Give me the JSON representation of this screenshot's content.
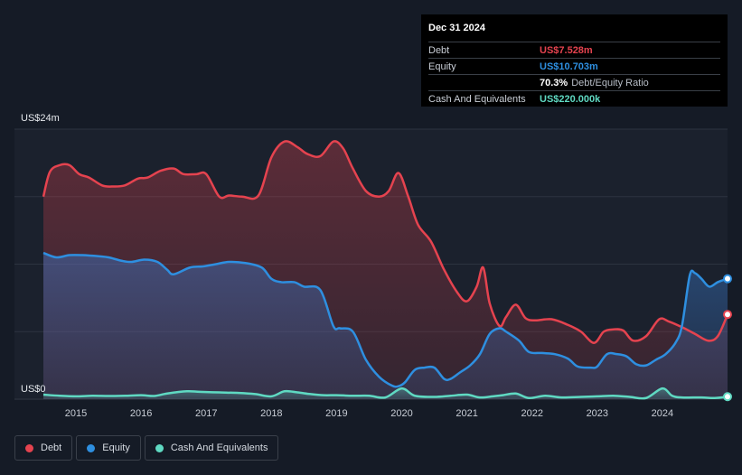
{
  "chart_data": {
    "type": "area",
    "y_top_label": "US$24m",
    "y_bottom_label": "US$0",
    "ylim": [
      0,
      24
    ],
    "xlim": [
      2014.5,
      2025.0
    ],
    "x_ticks": [
      2015,
      2016,
      2017,
      2018,
      2019,
      2020,
      2021,
      2022,
      2023,
      2024
    ],
    "series": [
      {
        "name": "Debt",
        "color": "#e5434f",
        "fill": "#e5434f",
        "points": [
          [
            2014.5,
            18.0
          ],
          [
            2014.6,
            20.2
          ],
          [
            2014.75,
            20.8
          ],
          [
            2014.9,
            20.8
          ],
          [
            2015.05,
            20.0
          ],
          [
            2015.2,
            19.7
          ],
          [
            2015.4,
            19.0
          ],
          [
            2015.55,
            18.9
          ],
          [
            2015.75,
            19.0
          ],
          [
            2015.95,
            19.6
          ],
          [
            2016.1,
            19.7
          ],
          [
            2016.3,
            20.3
          ],
          [
            2016.5,
            20.5
          ],
          [
            2016.65,
            20.0
          ],
          [
            2016.85,
            20.0
          ],
          [
            2017.0,
            20.0
          ],
          [
            2017.2,
            18.0
          ],
          [
            2017.35,
            18.1
          ],
          [
            2017.55,
            18.0
          ],
          [
            2017.8,
            18.1
          ],
          [
            2018.0,
            21.5
          ],
          [
            2018.2,
            22.9
          ],
          [
            2018.4,
            22.4
          ],
          [
            2018.55,
            21.8
          ],
          [
            2018.75,
            21.6
          ],
          [
            2018.95,
            22.9
          ],
          [
            2019.1,
            22.3
          ],
          [
            2019.25,
            20.5
          ],
          [
            2019.45,
            18.5
          ],
          [
            2019.65,
            18.0
          ],
          [
            2019.8,
            18.5
          ],
          [
            2019.95,
            20.1
          ],
          [
            2020.1,
            18.0
          ],
          [
            2020.25,
            15.5
          ],
          [
            2020.45,
            14.0
          ],
          [
            2020.65,
            11.5
          ],
          [
            2020.85,
            9.5
          ],
          [
            2021.0,
            8.7
          ],
          [
            2021.15,
            10.0
          ],
          [
            2021.25,
            11.7
          ],
          [
            2021.35,
            8.5
          ],
          [
            2021.5,
            6.5
          ],
          [
            2021.6,
            7.3
          ],
          [
            2021.75,
            8.4
          ],
          [
            2021.9,
            7.2
          ],
          [
            2022.05,
            7.0
          ],
          [
            2022.3,
            7.1
          ],
          [
            2022.55,
            6.6
          ],
          [
            2022.75,
            6.0
          ],
          [
            2022.95,
            5.0
          ],
          [
            2023.1,
            6.0
          ],
          [
            2023.25,
            6.2
          ],
          [
            2023.4,
            6.1
          ],
          [
            2023.55,
            5.2
          ],
          [
            2023.75,
            5.6
          ],
          [
            2023.95,
            7.1
          ],
          [
            2024.1,
            6.9
          ],
          [
            2024.3,
            6.4
          ],
          [
            2024.5,
            5.8
          ],
          [
            2024.7,
            5.2
          ],
          [
            2024.85,
            5.6
          ],
          [
            2025.0,
            7.528
          ]
        ]
      },
      {
        "name": "Equity",
        "color": "#2e8fe0",
        "fill": "#2e6fb8",
        "points": [
          [
            2014.5,
            13.0
          ],
          [
            2014.7,
            12.6
          ],
          [
            2014.9,
            12.8
          ],
          [
            2015.1,
            12.8
          ],
          [
            2015.35,
            12.7
          ],
          [
            2015.5,
            12.6
          ],
          [
            2015.7,
            12.3
          ],
          [
            2015.85,
            12.2
          ],
          [
            2016.05,
            12.4
          ],
          [
            2016.25,
            12.2
          ],
          [
            2016.4,
            11.5
          ],
          [
            2016.5,
            11.1
          ],
          [
            2016.75,
            11.7
          ],
          [
            2016.95,
            11.8
          ],
          [
            2017.15,
            12.0
          ],
          [
            2017.35,
            12.2
          ],
          [
            2017.6,
            12.1
          ],
          [
            2017.85,
            11.7
          ],
          [
            2018.0,
            10.7
          ],
          [
            2018.15,
            10.4
          ],
          [
            2018.35,
            10.4
          ],
          [
            2018.5,
            10.0
          ],
          [
            2018.75,
            9.7
          ],
          [
            2018.95,
            6.5
          ],
          [
            2019.05,
            6.3
          ],
          [
            2019.25,
            6.0
          ],
          [
            2019.45,
            3.5
          ],
          [
            2019.65,
            2.0
          ],
          [
            2019.85,
            1.2
          ],
          [
            2019.95,
            1.15
          ],
          [
            2020.05,
            1.5
          ],
          [
            2020.2,
            2.6
          ],
          [
            2020.35,
            2.8
          ],
          [
            2020.5,
            2.8
          ],
          [
            2020.65,
            1.8
          ],
          [
            2020.75,
            1.8
          ],
          [
            2020.9,
            2.4
          ],
          [
            2021.05,
            3.0
          ],
          [
            2021.2,
            4.0
          ],
          [
            2021.35,
            5.8
          ],
          [
            2021.5,
            6.3
          ],
          [
            2021.6,
            6.0
          ],
          [
            2021.8,
            5.2
          ],
          [
            2021.95,
            4.2
          ],
          [
            2022.15,
            4.1
          ],
          [
            2022.35,
            4.0
          ],
          [
            2022.55,
            3.6
          ],
          [
            2022.7,
            2.9
          ],
          [
            2022.9,
            2.8
          ],
          [
            2023.0,
            2.9
          ],
          [
            2023.15,
            4.0
          ],
          [
            2023.3,
            4.0
          ],
          [
            2023.45,
            3.8
          ],
          [
            2023.6,
            3.1
          ],
          [
            2023.75,
            3.0
          ],
          [
            2023.9,
            3.5
          ],
          [
            2024.05,
            4.0
          ],
          [
            2024.2,
            5.0
          ],
          [
            2024.3,
            6.5
          ],
          [
            2024.42,
            11.0
          ],
          [
            2024.5,
            11.2
          ],
          [
            2024.6,
            10.7
          ],
          [
            2024.72,
            10.0
          ],
          [
            2024.85,
            10.4
          ],
          [
            2025.0,
            10.703
          ]
        ]
      },
      {
        "name": "Cash And Equivalents",
        "color": "#5fd9c2",
        "fill": "#5fd9c2",
        "points": [
          [
            2014.5,
            0.4
          ],
          [
            2014.75,
            0.3
          ],
          [
            2015.0,
            0.25
          ],
          [
            2015.25,
            0.3
          ],
          [
            2015.5,
            0.28
          ],
          [
            2015.75,
            0.3
          ],
          [
            2016.0,
            0.35
          ],
          [
            2016.2,
            0.28
          ],
          [
            2016.4,
            0.5
          ],
          [
            2016.7,
            0.7
          ],
          [
            2016.9,
            0.65
          ],
          [
            2017.2,
            0.6
          ],
          [
            2017.5,
            0.55
          ],
          [
            2017.75,
            0.45
          ],
          [
            2018.0,
            0.25
          ],
          [
            2018.2,
            0.7
          ],
          [
            2018.4,
            0.6
          ],
          [
            2018.6,
            0.45
          ],
          [
            2018.8,
            0.35
          ],
          [
            2019.0,
            0.35
          ],
          [
            2019.25,
            0.3
          ],
          [
            2019.5,
            0.3
          ],
          [
            2019.75,
            0.15
          ],
          [
            2020.0,
            0.95
          ],
          [
            2020.2,
            0.3
          ],
          [
            2020.5,
            0.2
          ],
          [
            2020.75,
            0.3
          ],
          [
            2021.0,
            0.4
          ],
          [
            2021.2,
            0.15
          ],
          [
            2021.4,
            0.25
          ],
          [
            2021.55,
            0.35
          ],
          [
            2021.75,
            0.5
          ],
          [
            2021.95,
            0.1
          ],
          [
            2022.2,
            0.3
          ],
          [
            2022.45,
            0.15
          ],
          [
            2022.75,
            0.2
          ],
          [
            2023.0,
            0.25
          ],
          [
            2023.25,
            0.3
          ],
          [
            2023.5,
            0.2
          ],
          [
            2023.75,
            0.1
          ],
          [
            2024.0,
            0.95
          ],
          [
            2024.15,
            0.3
          ],
          [
            2024.3,
            0.15
          ],
          [
            2024.6,
            0.15
          ],
          [
            2024.8,
            0.1
          ],
          [
            2025.0,
            0.22
          ]
        ]
      }
    ],
    "grid": true,
    "legend_position": "bottom-left"
  },
  "tooltip": {
    "date": "Dec 31 2024",
    "rows": [
      {
        "label": "Debt",
        "value": "US$7.528m",
        "color": "#e5434f"
      },
      {
        "label": "Equity",
        "value": "US$10.703m",
        "color": "#2e8fe0"
      },
      {
        "label": "",
        "value": "70.3%",
        "suffix": "Debt/Equity Ratio",
        "color": "#ffffff"
      },
      {
        "label": "Cash And Equivalents",
        "value": "US$220.000k",
        "color": "#5fd9c2"
      }
    ]
  },
  "legend": [
    {
      "label": "Debt",
      "color": "#e5434f"
    },
    {
      "label": "Equity",
      "color": "#2e8fe0"
    },
    {
      "label": "Cash And Equivalents",
      "color": "#5fd9c2"
    }
  ]
}
